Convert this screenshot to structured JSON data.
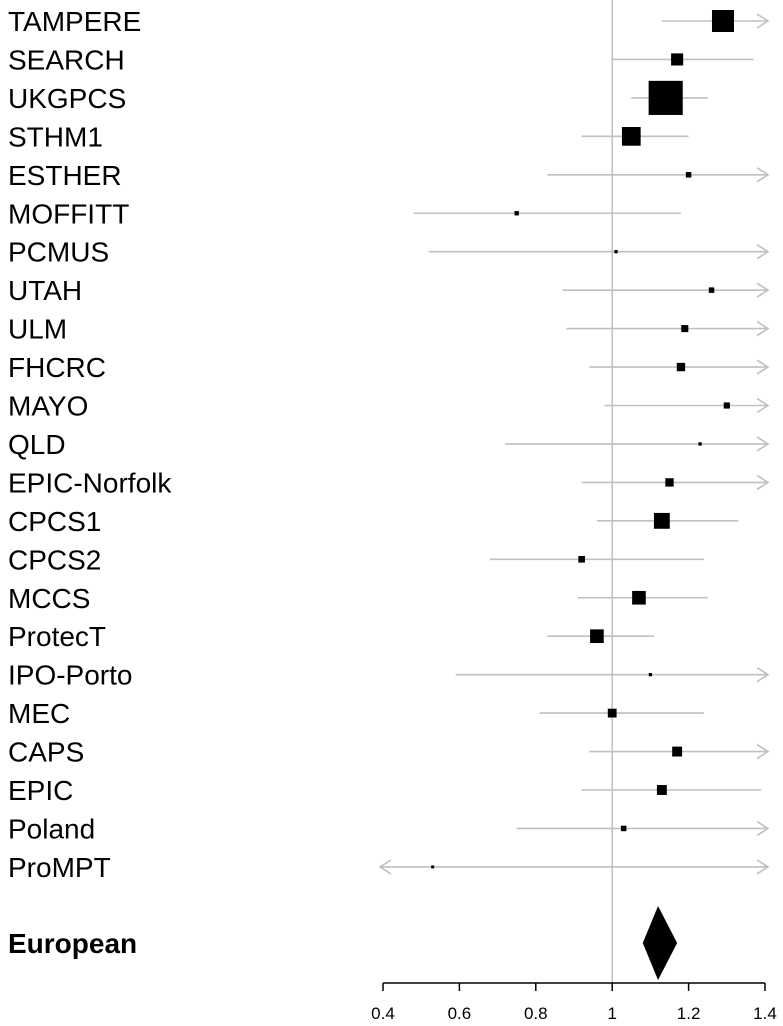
{
  "chart_data": {
    "type": "forest",
    "x_axis": {
      "range": [
        0.4,
        1.4
      ],
      "ticks": [
        0.4,
        0.6,
        0.8,
        1.0,
        1.2,
        1.4
      ],
      "tick_labels": [
        "0.4",
        "0.6",
        "0.8",
        "1",
        "1.2",
        "1.4"
      ]
    },
    "reference_line": 1.0,
    "colors": {
      "ci_line": "#c0c0c0",
      "marker": "#000000",
      "reference": "#c0c0c0"
    },
    "studies": [
      {
        "name": "TAMPERE",
        "estimate": 1.29,
        "lower": 1.13,
        "upper": 1.45,
        "weight": 1.0
      },
      {
        "name": "SEARCH",
        "estimate": 1.17,
        "lower": 1.0,
        "upper": 1.37,
        "weight": 0.55
      },
      {
        "name": "UKGPCS",
        "estimate": 1.14,
        "lower": 1.05,
        "upper": 1.25,
        "weight": 1.55
      },
      {
        "name": "STHM1",
        "estimate": 1.05,
        "lower": 0.92,
        "upper": 1.2,
        "weight": 0.85
      },
      {
        "name": "ESTHER",
        "estimate": 1.2,
        "lower": 0.83,
        "upper": 1.6,
        "weight": 0.25
      },
      {
        "name": "MOFFITT",
        "estimate": 0.75,
        "lower": 0.48,
        "upper": 1.18,
        "weight": 0.2
      },
      {
        "name": "PCMUS",
        "estimate": 1.01,
        "lower": 0.52,
        "upper": 1.7,
        "weight": 0.15
      },
      {
        "name": "UTAH",
        "estimate": 1.26,
        "lower": 0.87,
        "upper": 1.7,
        "weight": 0.25
      },
      {
        "name": "ULM",
        "estimate": 1.19,
        "lower": 0.88,
        "upper": 1.6,
        "weight": 0.32
      },
      {
        "name": "FHCRC",
        "estimate": 1.18,
        "lower": 0.94,
        "upper": 1.6,
        "weight": 0.38
      },
      {
        "name": "MAYO",
        "estimate": 1.3,
        "lower": 0.98,
        "upper": 1.6,
        "weight": 0.28
      },
      {
        "name": "QLD",
        "estimate": 1.23,
        "lower": 0.72,
        "upper": 1.6,
        "weight": 0.15
      },
      {
        "name": "EPIC-Norfolk",
        "estimate": 1.15,
        "lower": 0.92,
        "upper": 1.6,
        "weight": 0.38
      },
      {
        "name": "CPCS1",
        "estimate": 1.13,
        "lower": 0.96,
        "upper": 1.33,
        "weight": 0.72
      },
      {
        "name": "CPCS2",
        "estimate": 0.92,
        "lower": 0.68,
        "upper": 1.24,
        "weight": 0.3
      },
      {
        "name": "MCCS",
        "estimate": 1.07,
        "lower": 0.91,
        "upper": 1.25,
        "weight": 0.62
      },
      {
        "name": "ProtecT",
        "estimate": 0.96,
        "lower": 0.83,
        "upper": 1.11,
        "weight": 0.62
      },
      {
        "name": "IPO-Porto",
        "estimate": 1.1,
        "lower": 0.59,
        "upper": 1.6,
        "weight": 0.15
      },
      {
        "name": "MEC",
        "estimate": 1.0,
        "lower": 0.81,
        "upper": 1.24,
        "weight": 0.4
      },
      {
        "name": "CAPS",
        "estimate": 1.17,
        "lower": 0.94,
        "upper": 1.6,
        "weight": 0.45
      },
      {
        "name": "EPIC",
        "estimate": 1.13,
        "lower": 0.92,
        "upper": 1.39,
        "weight": 0.45
      },
      {
        "name": "Poland",
        "estimate": 1.03,
        "lower": 0.75,
        "upper": 1.6,
        "weight": 0.25
      },
      {
        "name": "ProMPT",
        "estimate": 0.53,
        "lower": 0.3,
        "upper": 1.6,
        "weight": 0.12
      }
    ],
    "summary": {
      "name": "European",
      "estimate": 1.12,
      "lower": 1.08,
      "upper": 1.17
    }
  }
}
